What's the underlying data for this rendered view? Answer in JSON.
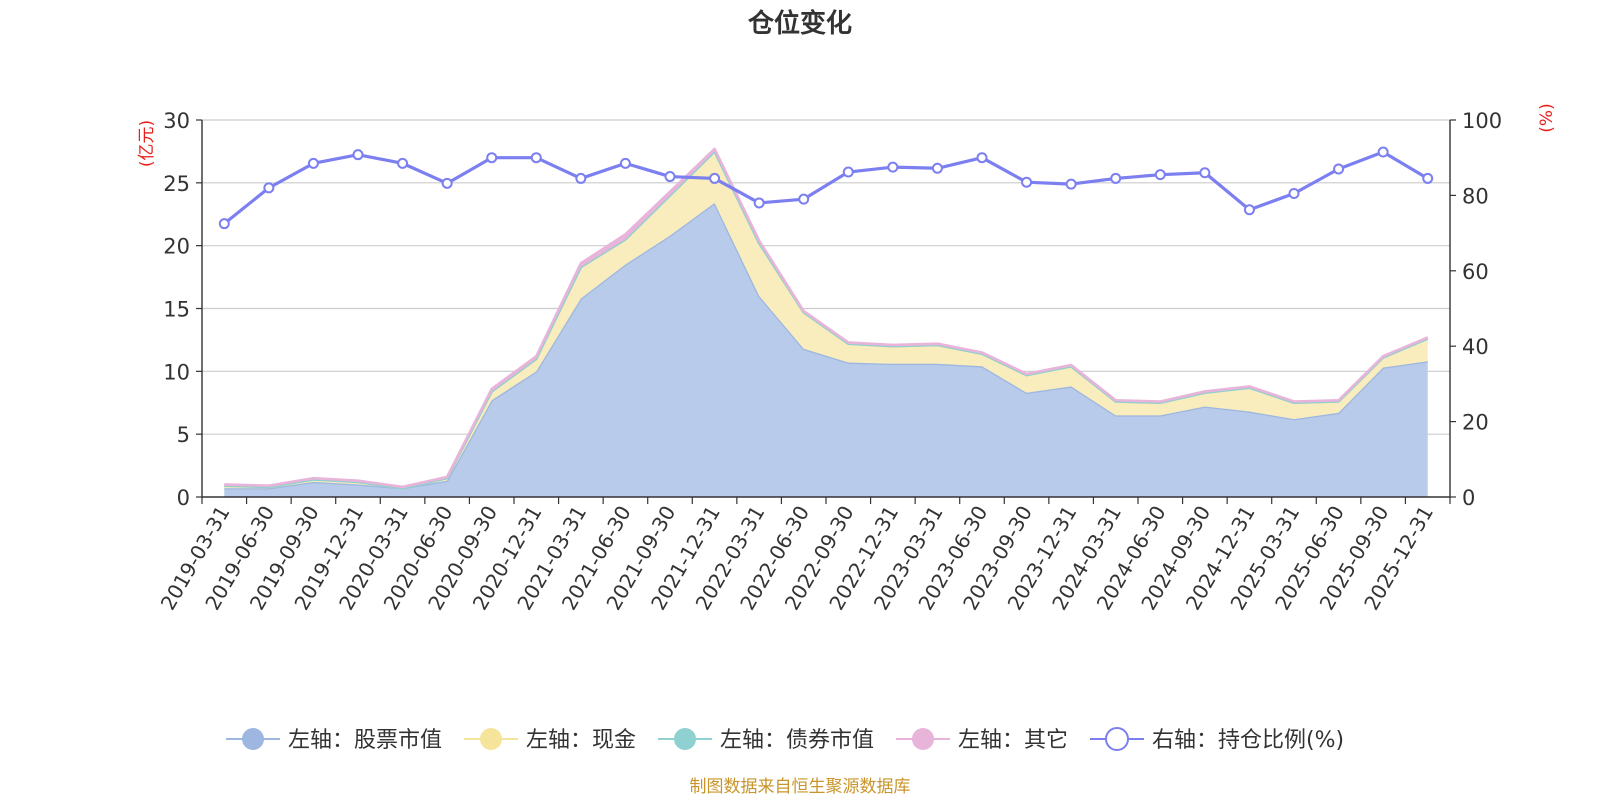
{
  "chart_data": {
    "type": "area",
    "title": "仓位变化",
    "left_axis_unit": "(亿元)",
    "right_axis_unit": "(%)",
    "left_ylim": [
      0,
      30
    ],
    "left_yticks": [
      "0",
      "5",
      "10",
      "15",
      "20",
      "25",
      "30"
    ],
    "right_ylim": [
      0,
      100
    ],
    "right_yticks": [
      "0",
      "20",
      "40",
      "60",
      "80",
      "100"
    ],
    "categories": [
      "2019-03-31",
      "2019-06-30",
      "2019-09-30",
      "2019-12-31",
      "2020-03-31",
      "2020-06-30",
      "2020-09-30",
      "2020-12-31",
      "2021-03-31",
      "2021-06-30",
      "2021-09-30",
      "2021-12-31",
      "2022-03-31",
      "2022-06-30",
      "2022-09-30",
      "2022-12-31",
      "2023-03-31",
      "2023-06-30",
      "2023-09-30",
      "2023-12-31",
      "2024-03-31",
      "2024-06-30",
      "2024-09-30",
      "2024-12-31",
      "2025-03-31",
      "2025-06-30",
      "2025-09-30",
      "2025-12-31"
    ],
    "series": [
      {
        "name": "左轴：股票市值",
        "axis": "left",
        "stack": true,
        "color": "#9db7e0",
        "fill": "#b8cbea",
        "values": [
          0.7,
          0.7,
          1.2,
          1.0,
          0.7,
          1.3,
          7.7,
          10.0,
          15.8,
          18.5,
          20.8,
          23.4,
          16.0,
          11.8,
          10.7,
          10.6,
          10.6,
          10.4,
          8.3,
          8.8,
          6.5,
          6.5,
          7.2,
          6.8,
          6.2,
          6.7,
          10.3,
          10.8
        ]
      },
      {
        "name": "左轴：现金",
        "axis": "left",
        "stack": true,
        "color": "#f6e49a",
        "fill": "#f9ecbd",
        "values": [
          0.2,
          0.1,
          0.2,
          0.2,
          0.0,
          0.2,
          0.7,
          1.0,
          2.5,
          2.0,
          3.2,
          4.1,
          4.2,
          2.9,
          1.5,
          1.4,
          1.5,
          1.0,
          1.4,
          1.6,
          1.1,
          1.0,
          1.1,
          1.9,
          1.3,
          0.9,
          0.8,
          1.8
        ]
      },
      {
        "name": "左轴：债券市值",
        "axis": "left",
        "stack": true,
        "color": "#8fd0d1",
        "fill": "#8fd0d1",
        "values": [
          0,
          0,
          0,
          0,
          0,
          0,
          0,
          0,
          0,
          0,
          0,
          0,
          0,
          0,
          0,
          0,
          0,
          0,
          0,
          0,
          0,
          0,
          0,
          0,
          0,
          0,
          0,
          0
        ]
      },
      {
        "name": "左轴：其它",
        "axis": "left",
        "stack": true,
        "color": "#e8b4da",
        "fill": "#e8b4da",
        "values": [
          0.1,
          0.1,
          0.1,
          0.1,
          0.1,
          0.1,
          0.2,
          0.2,
          0.3,
          0.4,
          0.3,
          0.2,
          0.2,
          0.1,
          0.1,
          0.1,
          0.1,
          0.1,
          0.1,
          0.1,
          0.1,
          0.1,
          0.1,
          0.1,
          0.1,
          0.1,
          0.1,
          0.1
        ]
      },
      {
        "name": "右轴：持仓比例(%)",
        "axis": "right",
        "type": "line",
        "color": "#7b7ff0",
        "values": [
          72.5,
          82,
          88.5,
          90.8,
          88.5,
          83.2,
          90,
          90,
          84.5,
          88.5,
          85,
          84.5,
          78,
          79,
          86.2,
          87.5,
          87.2,
          90,
          83.5,
          83,
          84.5,
          85.5,
          86,
          76.2,
          80.5,
          87,
          91.5,
          84.5
        ]
      }
    ]
  },
  "footer": {
    "source": "制图数据来自恒生聚源数据库"
  },
  "colors": {
    "unit_red": "#e8201a",
    "source_gold": "#c9952a",
    "grid": "#cccccc",
    "axis": "#333333"
  }
}
